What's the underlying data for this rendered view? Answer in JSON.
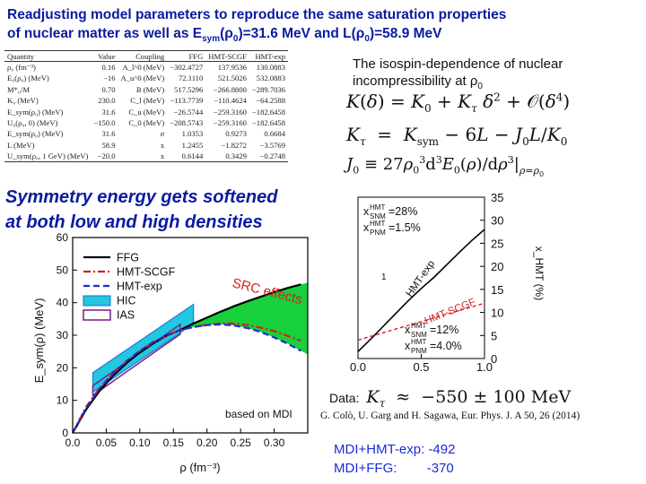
{
  "slide": {
    "title_line1": "Readjusting model parameters to reproduce the same saturation properties",
    "title_line2_a": "of nuclear matter as well as E",
    "title_line2_sub1": "sym",
    "title_line2_b": "(ρ",
    "title_line2_sub2": "0",
    "title_line2_c": ")=31.6 MeV and L(ρ",
    "title_line2_sub3": "0",
    "title_line2_d": ")=58.9 MeV"
  },
  "table": {
    "headers": [
      "Quantity",
      "Value",
      "Coupling",
      "FFG",
      "HMT-SCGF",
      "HMT-exp"
    ],
    "rows": [
      [
        "ρ₀ (fm⁻³)",
        "0.16",
        "A_l^0 (MeV)",
        "−302.4727",
        "137.9536",
        "130.0883"
      ],
      [
        "E₀(ρ₀) (MeV)",
        "−16",
        "A_u^0 (MeV)",
        "72.1110",
        "521.5026",
        "532.0883"
      ],
      [
        "M*₀/M",
        "0.70",
        "B (MeV)",
        "517.5296",
        "−266.8800",
        "−289.7036"
      ],
      [
        "K₀ (MeV)",
        "230.0",
        "C_l (MeV)",
        "−113.7739",
        "−110.4624",
        "−64.2588"
      ],
      [
        "E_sym(ρ₀) (MeV)",
        "31.6",
        "C_u (MeV)",
        "−26.5744",
        "−259.3160",
        "−182.6458"
      ],
      [
        "U₀(ρ₀, 0) (MeV)",
        "−150.0",
        "C_0 (MeV)",
        "−208.5743",
        "−259.3160",
        "−182.6458"
      ],
      [
        "E_sym(ρ₀) (MeV)",
        "31.6",
        "σ",
        "1.0353",
        "0.9273",
        "0.6684"
      ],
      [
        "L (MeV)",
        "58.9",
        "x",
        "1.2455",
        "−1.8272",
        "−3.5769"
      ],
      [
        "U_sym(ρ₀, 1 GeV) (MeV)",
        "−20.0",
        "x",
        "0.6144",
        "0.3429",
        "−0.2748"
      ]
    ]
  },
  "isospin": {
    "line1": "The isospin-dependence of nuclear",
    "line2_a": "incompressibility at ρ",
    "line2_sub": "0",
    "eq1": "K(δ) = K₀ + K_τ δ² + 𝒪(δ⁴)",
    "eq2": "K_τ = K_sym − 6L − J₀L/K₀",
    "eq3": "J₀ ≡ 27ρ₀³ d³E₀(ρ)/dρ³|_{ρ=ρ₀}"
  },
  "softened": {
    "line1": "Symmetry energy gets softened",
    "line2": "at both low and high densities"
  },
  "main_plot": {
    "ylabel": "E_sym(ρ) (MeV)",
    "xlabel": "ρ (fm⁻³)",
    "annotation": "SRC effects",
    "footnote": "based on MDI",
    "colors": {
      "ffg": "#000000",
      "scgf": "#d81e1e",
      "exp": "#1f2bd0",
      "hic": "#22c7e0",
      "ias": "#7a2a8c",
      "src": "#18d03c"
    },
    "legend": [
      "FFG",
      "HMT-SCGF",
      "HMT-exp",
      "HIC",
      "IAS"
    ],
    "chart_data": {
      "type": "line",
      "xlim": [
        0,
        0.35
      ],
      "ylim": [
        0,
        60
      ],
      "xticks": [
        "0.0",
        "0.05",
        "0.10",
        "0.15",
        "0.20",
        "0.25",
        "0.30"
      ],
      "yticks": [
        "0",
        "10",
        "20",
        "30",
        "40",
        "50",
        "60"
      ],
      "series": [
        {
          "name": "FFG",
          "x": [
            0,
            0.02,
            0.04,
            0.06,
            0.08,
            0.1,
            0.12,
            0.14,
            0.16,
            0.18,
            0.2,
            0.22,
            0.24,
            0.26,
            0.28,
            0.3,
            0.32,
            0.34
          ],
          "y": [
            0,
            7.2,
            12.9,
            17.5,
            21.4,
            24.7,
            27.5,
            29.9,
            31.6,
            33.6,
            35.4,
            37.2,
            38.9,
            40.4,
            41.8,
            43.2,
            44.5,
            45.6
          ]
        },
        {
          "name": "HMT-SCGF",
          "x": [
            0,
            0.02,
            0.04,
            0.06,
            0.08,
            0.1,
            0.12,
            0.14,
            0.16,
            0.18,
            0.2,
            0.22,
            0.24,
            0.26,
            0.28,
            0.3,
            0.32,
            0.34
          ],
          "y": [
            0,
            8.0,
            13.8,
            18.3,
            22.0,
            25.2,
            27.8,
            29.9,
            31.6,
            32.5,
            33.2,
            33.6,
            33.6,
            33.1,
            32.3,
            31.3,
            29.8,
            28.3
          ]
        },
        {
          "name": "HMT-exp",
          "x": [
            0,
            0.02,
            0.04,
            0.06,
            0.08,
            0.1,
            0.12,
            0.14,
            0.16,
            0.18,
            0.2,
            0.22,
            0.24,
            0.26,
            0.28,
            0.3,
            0.32,
            0.34
          ],
          "y": [
            0,
            7.6,
            13.5,
            18.2,
            22.0,
            25.2,
            27.9,
            29.9,
            31.6,
            32.5,
            33.1,
            33.3,
            33.0,
            32.2,
            31.0,
            29.3,
            27.4,
            25.2
          ]
        }
      ],
      "regions": [
        {
          "name": "HIC",
          "x": [
            0.03,
            0.18
          ],
          "y_lower": [
            12.5,
            33.5
          ],
          "y_upper": [
            18.5,
            34.5
          ]
        },
        {
          "name": "IAS",
          "x": [
            0.03,
            0.16
          ],
          "y_lower": [
            11.5,
            30.3
          ],
          "y_upper": [
            14.5,
            33.3
          ]
        }
      ]
    }
  },
  "inset_plot": {
    "label_snm_a": "x",
    "label_snm_sup": "HMT",
    "label_snm_sub": "SNM",
    "label_snm_val": "=28%",
    "label_pnm1_val": "=1.5%",
    "label_pnm_sub": "PNM",
    "label_exp": "HMT-exp",
    "label_scgf": "HMT-SCGF",
    "label_snm2_val": "=12%",
    "label_pnm2_val": "=4.0%",
    "ylabel": "x_HMT (%)",
    "xlabel": "δ",
    "mid_label": "1",
    "chart_data": {
      "type": "line",
      "xlim": [
        0,
        1.0
      ],
      "ylim": [
        0,
        35
      ],
      "xticks": [
        "0.0",
        "0.5",
        "1.0"
      ],
      "yticks": [
        "0",
        "5",
        "10",
        "15",
        "20",
        "25",
        "30",
        "35"
      ],
      "series": [
        {
          "name": "HMT-exp",
          "x": [
            0,
            0.1,
            0.2,
            0.3,
            0.4,
            0.5,
            0.6,
            0.7,
            0.8,
            0.9,
            1.0
          ],
          "y": [
            1.5,
            4.2,
            7.0,
            9.8,
            12.6,
            15.2,
            17.6,
            20.3,
            23.0,
            25.6,
            28.0
          ]
        },
        {
          "name": "HMT-SCGF",
          "x": [
            0,
            0.1,
            0.2,
            0.3,
            0.4,
            0.5,
            0.6,
            0.7,
            0.8,
            0.9,
            1.0
          ],
          "y": [
            4.0,
            4.8,
            5.6,
            6.4,
            7.2,
            8.0,
            8.8,
            9.6,
            10.4,
            11.2,
            12.0
          ]
        }
      ]
    }
  },
  "data_note": {
    "prefix": "Data:",
    "equation": "K_τ ≈ −550 ± 100 MeV",
    "citation": "G. Colò, U. Garg and H. Sagawa, Eur. Phys. J. A 50, 26 (2014)"
  },
  "results": {
    "line1": "MDI+HMT-exp: -492",
    "line2": "MDI+FFG:        -370"
  }
}
